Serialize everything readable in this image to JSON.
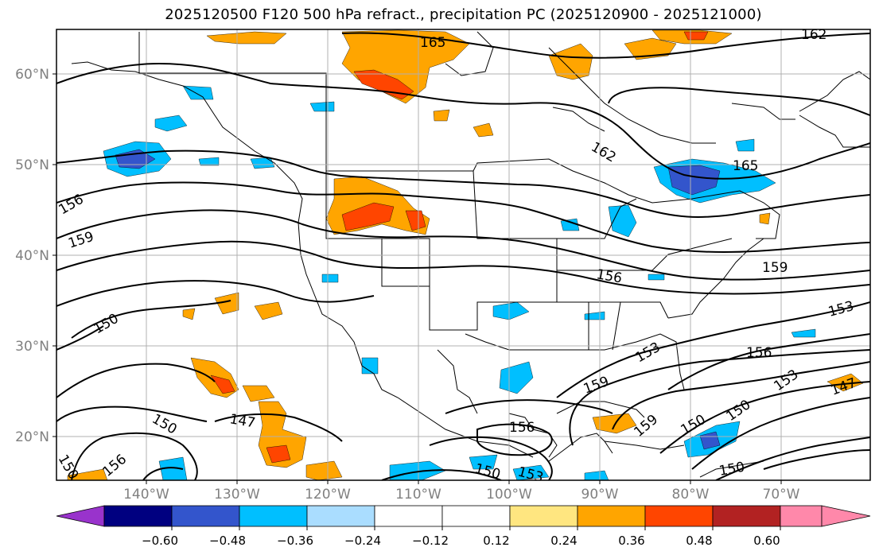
{
  "title": "2025120500 F120 500 hPa refract., precipitation PC (2025120900 - 2025121000)",
  "lat_labels": [
    "60°N",
    "50°N",
    "40°N",
    "30°N",
    "20°N"
  ],
  "lon_labels": [
    "140°W",
    "130°W",
    "120°W",
    "110°W",
    "100°W",
    "90°W",
    "80°W",
    "70°W"
  ],
  "contour_labels": [
    "165",
    "162",
    "165",
    "162",
    "159",
    "156",
    "156",
    "159",
    "150",
    "153",
    "150",
    "147",
    "150",
    "156",
    "153",
    "156",
    "159",
    "159",
    "150",
    "150",
    "153",
    "147",
    "150",
    "156",
    "153",
    "150"
  ],
  "colorbar": {
    "tick_labels": [
      "−0.60",
      "−0.48",
      "−0.36",
      "−0.24",
      "−0.12",
      "0.12",
      "0.24",
      "0.36",
      "0.48",
      "0.60"
    ],
    "colors": [
      "#9933cc",
      "#000080",
      "#3355cc",
      "#00bfff",
      "#aaddff",
      "#ffffff",
      "#ffe680",
      "#ffa500",
      "#ff4500",
      "#b22222",
      "#ff88aa"
    ]
  }
}
